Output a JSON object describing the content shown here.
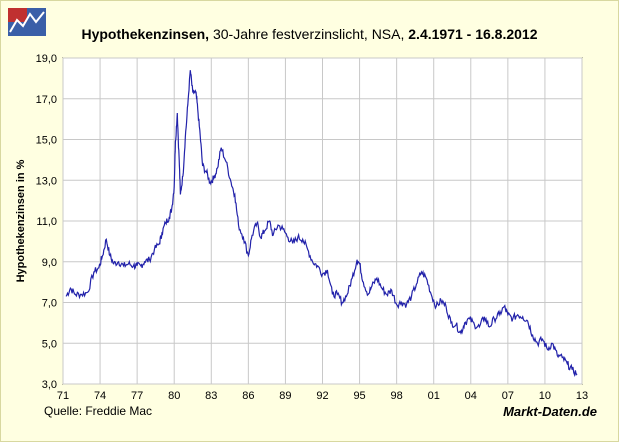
{
  "header": {
    "title_main": "Hypothekenzinsen,",
    "title_sub": "30-Jahre festverzinslicht, NSA,",
    "title_range": "2.4.1971 - 16.8.2012"
  },
  "footer": {
    "source": "Quelle: Freddie Mac",
    "brand": "Markt-Daten.de"
  },
  "colors": {
    "line": "#2222aa",
    "background": "#ffffe1",
    "plot_bg": "#ffffff",
    "grid": "#c8c8c8"
  },
  "chart_data": {
    "type": "line",
    "title": "Hypothekenzinsen, 30-Jahre festverzinslicht, NSA, 2.4.1971 - 16.8.2012",
    "xlabel": "",
    "ylabel": "Hypothekenzinsen in %",
    "xlim": [
      71,
      113
    ],
    "ylim": [
      3.0,
      19.0
    ],
    "x_tick_labels": [
      "71",
      "74",
      "77",
      "80",
      "83",
      "86",
      "89",
      "92",
      "95",
      "98",
      "01",
      "04",
      "07",
      "10",
      "13"
    ],
    "y_tick_labels": [
      "3,0",
      "5,0",
      "7,0",
      "9,0",
      "11,0",
      "13,0",
      "15,0",
      "17,0",
      "19,0"
    ],
    "grid": true,
    "series": [
      {
        "x": [
          71.25,
          71.6,
          72.0,
          72.5,
          73.0,
          73.5,
          73.9,
          74.2,
          74.5,
          74.8,
          75.1,
          75.5,
          75.9,
          76.3,
          76.7,
          77.0,
          77.3,
          77.6,
          78.0,
          78.4,
          78.8,
          79.0,
          79.3,
          79.6,
          79.8,
          80.0,
          80.1,
          80.25,
          80.4,
          80.5,
          80.7,
          80.9,
          81.1,
          81.3,
          81.5,
          81.75,
          81.9,
          82.1,
          82.3,
          82.6,
          82.9,
          83.2,
          83.5,
          83.8,
          84.2,
          84.6,
          84.9,
          85.2,
          85.6,
          86.0,
          86.3,
          86.7,
          87.0,
          87.3,
          87.7,
          88.0,
          88.4,
          88.8,
          89.2,
          89.6,
          90.0,
          90.4,
          90.8,
          91.2,
          91.6,
          92.0,
          92.4,
          92.8,
          93.2,
          93.6,
          94.0,
          94.4,
          94.8,
          95.0,
          95.3,
          95.7,
          96.0,
          96.4,
          96.8,
          97.2,
          97.6,
          98.0,
          98.4,
          98.8,
          99.2,
          99.6,
          100.0,
          100.4,
          100.8,
          101.2,
          101.6,
          102.0,
          102.4,
          102.8,
          103.2,
          103.5,
          103.9,
          104.3,
          104.7,
          105.1,
          105.5,
          105.9,
          106.3,
          106.7,
          107.0,
          107.4,
          107.8,
          108.2,
          108.6,
          109.0,
          109.4,
          109.8,
          110.2,
          110.6,
          111.0,
          111.4,
          111.8,
          112.2,
          112.6
        ],
        "y": [
          7.3,
          7.7,
          7.4,
          7.4,
          7.5,
          8.5,
          8.7,
          9.3,
          10.1,
          9.3,
          8.9,
          9.0,
          8.8,
          8.9,
          8.8,
          8.8,
          8.8,
          9.0,
          9.1,
          9.6,
          9.9,
          10.4,
          10.9,
          11.2,
          11.6,
          12.7,
          14.9,
          16.3,
          14.0,
          12.3,
          13.2,
          15.1,
          16.7,
          18.4,
          17.3,
          17.3,
          16.5,
          15.2,
          13.7,
          13.4,
          12.9,
          13.1,
          13.6,
          14.6,
          13.9,
          12.9,
          12.3,
          10.8,
          10.2,
          9.3,
          10.3,
          10.9,
          10.2,
          10.5,
          11.0,
          10.3,
          10.8,
          10.6,
          10.2,
          9.9,
          10.2,
          10.1,
          9.6,
          9.0,
          8.8,
          8.4,
          8.6,
          7.4,
          7.4,
          7.0,
          7.4,
          8.2,
          9.1,
          8.9,
          8.0,
          7.4,
          7.8,
          8.2,
          7.7,
          7.4,
          7.6,
          6.9,
          7.0,
          6.9,
          7.3,
          7.9,
          8.5,
          8.2,
          7.4,
          6.8,
          7.1,
          6.8,
          6.0,
          5.9,
          5.5,
          6.0,
          6.2,
          5.9,
          5.8,
          6.3,
          5.8,
          6.2,
          6.4,
          6.8,
          6.4,
          6.2,
          6.4,
          6.3,
          6.1,
          5.4,
          5.0,
          5.2,
          4.7,
          5.0,
          4.4,
          4.3,
          4.0,
          3.7,
          3.5
        ]
      }
    ]
  }
}
